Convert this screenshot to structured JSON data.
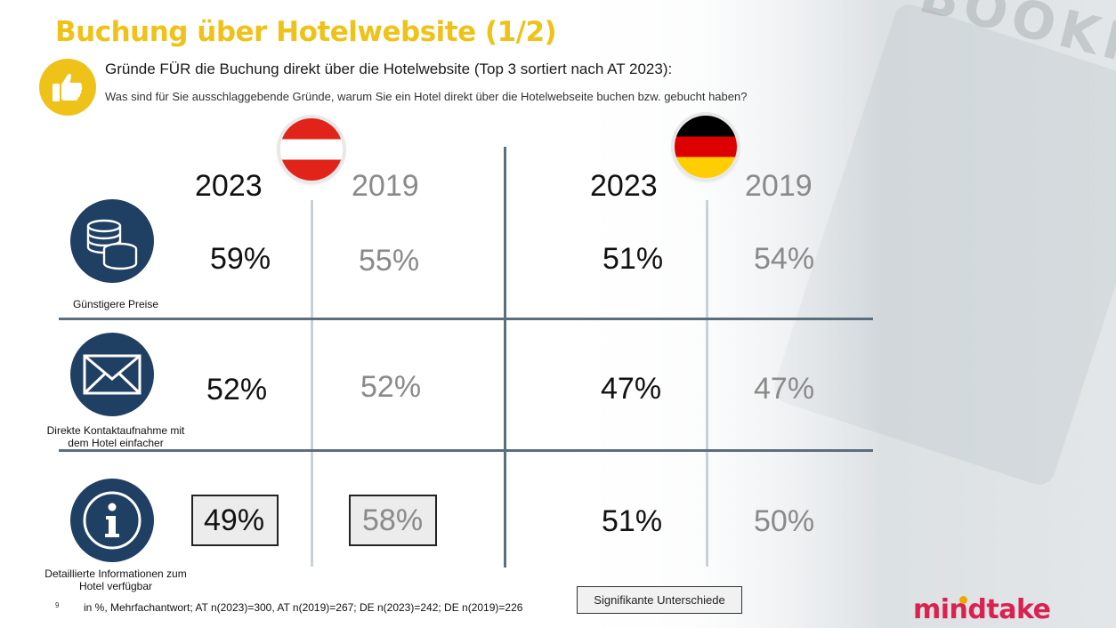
{
  "title": "Buchung über Hotelwebsite (1/2)",
  "subtitle": "Gründe FÜR die Buchung direkt über die Hotelwebsite (Top 3 sortiert nach AT 2023):",
  "question": "Was sind für Sie ausschlaggebende Gründe, warum Sie ein Hotel direkt über die Hotelwebseite buchen bzw. gebucht haben?",
  "background_word": "BOOKING",
  "columns": {
    "at_2023": "2023",
    "at_2019": "2019",
    "de_2023": "2023",
    "de_2019": "2019"
  },
  "rows": [
    {
      "label": "Günstigere Preise",
      "icon": "coins-icon",
      "at_2023": "59%",
      "at_2019": "55%",
      "de_2023": "51%",
      "de_2019": "54%"
    },
    {
      "label": "Direkte Kontaktaufnahme mit dem Hotel einfacher",
      "icon": "envelope-icon",
      "at_2023": "52%",
      "at_2019": "52%",
      "de_2023": "47%",
      "de_2019": "47%"
    },
    {
      "label": "Detaillierte Informationen zum Hotel verfügbar",
      "icon": "info-icon",
      "at_2023": "49%",
      "at_2019": "58%",
      "de_2023": "51%",
      "de_2019": "50%"
    }
  ],
  "footnote_number": "9",
  "footnote": "in %, Mehrfachantwort; AT n(2023)=300, AT n(2019)=267; DE n(2023)=242; DE n(2019)=226",
  "legend": "Signifikante Unterschiede",
  "logo": "mindtake",
  "colors": {
    "title_yellow": "#efc21a",
    "icon_navy": "#1f3f63",
    "logo_pink": "#d9224f",
    "grid_line": "#5b6e7d"
  }
}
